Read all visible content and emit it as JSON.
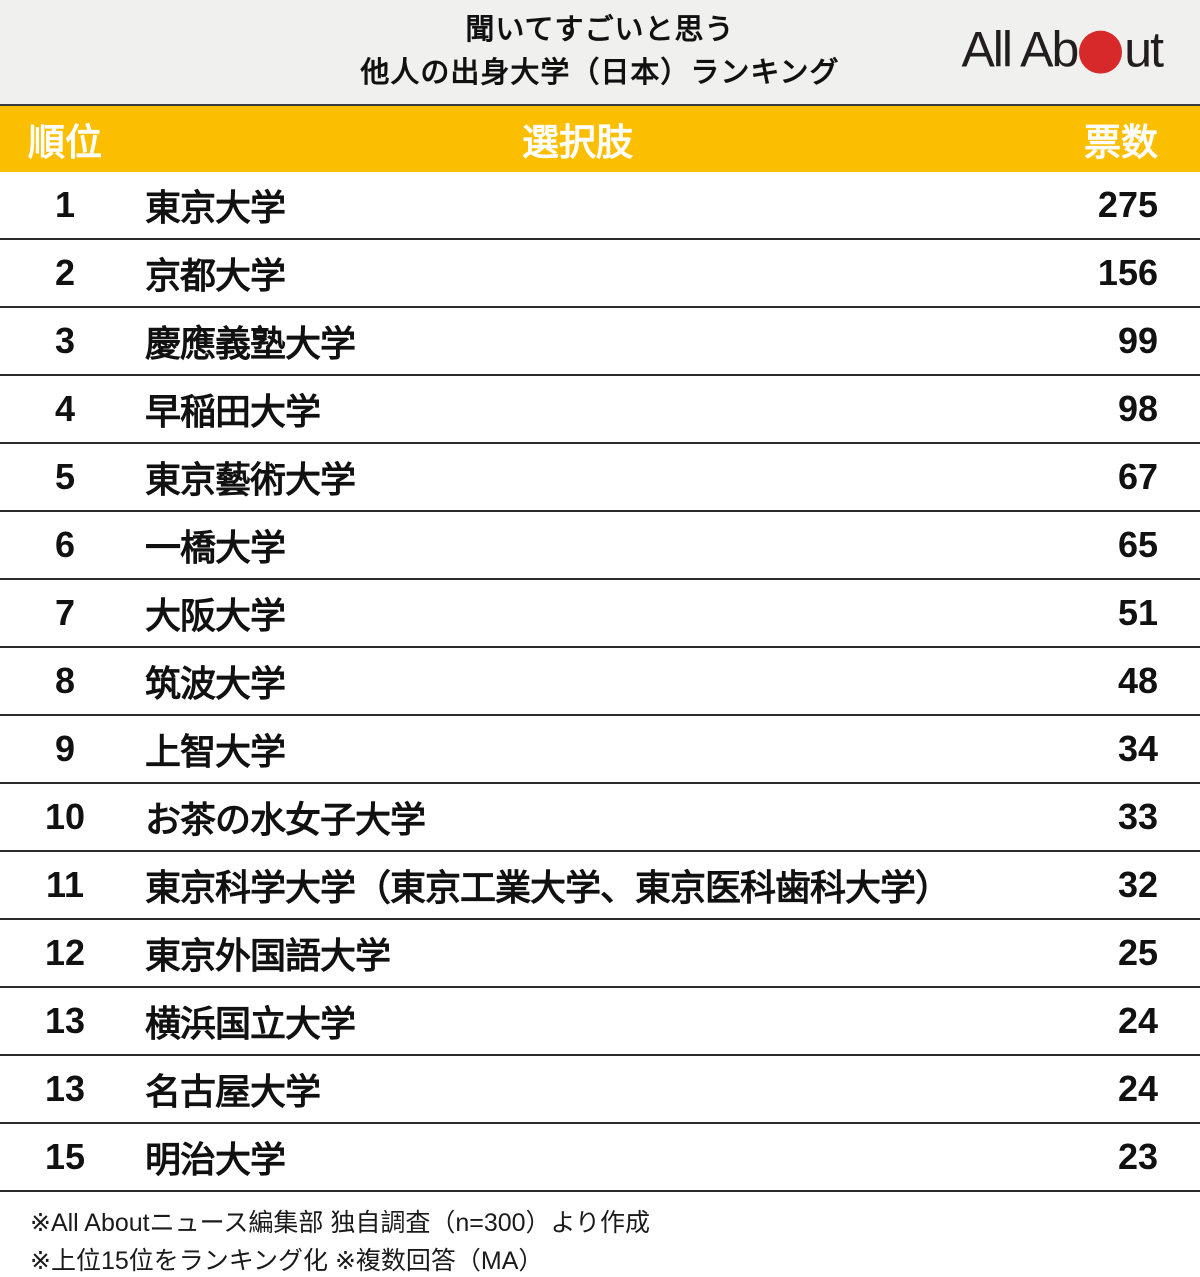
{
  "chart_data": {
    "type": "table",
    "title": "聞いてすごいと思う 他人の出身大学（日本）ランキング",
    "columns": [
      "順位",
      "選択肢",
      "票数"
    ],
    "rows": [
      {
        "rank": "1",
        "name": "東京大学",
        "votes": "275"
      },
      {
        "rank": "2",
        "name": "京都大学",
        "votes": "156"
      },
      {
        "rank": "3",
        "name": "慶應義塾大学",
        "votes": "99"
      },
      {
        "rank": "4",
        "name": "早稲田大学",
        "votes": "98"
      },
      {
        "rank": "5",
        "name": "東京藝術大学",
        "votes": "67"
      },
      {
        "rank": "6",
        "name": "一橋大学",
        "votes": "65"
      },
      {
        "rank": "7",
        "name": "大阪大学",
        "votes": "51"
      },
      {
        "rank": "8",
        "name": "筑波大学",
        "votes": "48"
      },
      {
        "rank": "9",
        "name": "上智大学",
        "votes": "34"
      },
      {
        "rank": "10",
        "name": "お茶の水女子大学",
        "votes": "33"
      },
      {
        "rank": "11",
        "name": "東京科学大学（東京工業大学、東京医科歯科大学）",
        "votes": "32"
      },
      {
        "rank": "12",
        "name": "東京外国語大学",
        "votes": "25"
      },
      {
        "rank": "13",
        "name": "横浜国立大学",
        "votes": "24"
      },
      {
        "rank": "13",
        "name": "名古屋大学",
        "votes": "24"
      },
      {
        "rank": "15",
        "name": "明治大学",
        "votes": "23"
      }
    ],
    "notes": [
      "※All Aboutニュース編集部 独自調査（n=300）より作成",
      "※上位15位をランキング化 ※複数回答（MA）"
    ]
  },
  "header": {
    "title_line1": "聞いてすごいと思う",
    "title_line2": "他人の出身大学（日本）ランキング",
    "logo_text_left": "All Ab",
    "logo_text_right": "ut"
  },
  "colors": {
    "header_bg": "#f0f0ef",
    "accent_yellow": "#fcbe00",
    "logo_red": "#d7282a",
    "row_divider": "#2b2b2b",
    "header_text": "#ffffff",
    "body_text": "#111111"
  }
}
